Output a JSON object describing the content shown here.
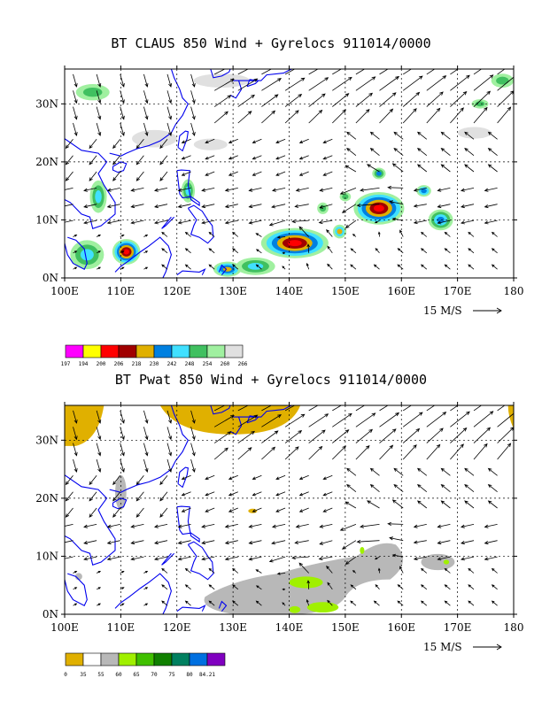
{
  "panels": [
    {
      "title": "BT CLAUS 850 Wind + Gyrelocs 911014/0000",
      "ref_vector_label": "15 M/S"
    },
    {
      "title": "BT Pwat 850 Wind + Gyrelocs 911014/0000",
      "ref_vector_label": "15 M/S"
    }
  ],
  "colors": {
    "coast": "#0000ee",
    "grid": "#000000",
    "panel1_scale": [
      "#ff00ff",
      "#ffff00",
      "#ff0000",
      "#a00000",
      "#e0b000",
      "#0080e0",
      "#40e0ff",
      "#40c060",
      "#a0f0a0",
      "#e0e0e0"
    ],
    "panel2_scale": [
      "#e0b000",
      "#ffffff",
      "#b8b8b8",
      "#a0f000",
      "#40c000",
      "#108000",
      "#008060",
      "#0070e0",
      "#8000c0"
    ]
  },
  "chart_data": [
    {
      "type": "heatmap",
      "title": "BT CLAUS 850 Wind + Gyrelocs 911014/0000",
      "x_ticks": [
        "100E",
        "110E",
        "120E",
        "130E",
        "140E",
        "150E",
        "160E",
        "170E",
        "180"
      ],
      "y_ticks": [
        "0N",
        "10N",
        "20N",
        "30N"
      ],
      "xlim": [
        100,
        180
      ],
      "ylim": [
        0,
        36
      ],
      "grid": true,
      "colorbar_labels": [
        "197",
        "194",
        "200",
        "206",
        "218",
        "230",
        "242",
        "248",
        "254",
        "260",
        "266"
      ],
      "reference_vector": "15 M/S",
      "features": [
        {
          "lon": 141,
          "lat": 6,
          "value": 206
        },
        {
          "lon": 156,
          "lat": 12,
          "value": 206
        },
        {
          "lon": 111,
          "lat": 4.5,
          "value": 206
        },
        {
          "lon": 129,
          "lat": 1.5,
          "value": 218
        },
        {
          "lon": 149,
          "lat": 8,
          "value": 218
        },
        {
          "lon": 167,
          "lat": 10,
          "value": 242
        },
        {
          "lon": 106,
          "lat": 14,
          "value": 248
        },
        {
          "lon": 122,
          "lat": 15,
          "value": 248
        }
      ]
    },
    {
      "type": "heatmap",
      "title": "BT Pwat 850 Wind + Gyrelocs 911014/0000",
      "x_ticks": [
        "100E",
        "110E",
        "120E",
        "130E",
        "140E",
        "150E",
        "160E",
        "170E",
        "180"
      ],
      "y_ticks": [
        "0N",
        "10N",
        "20N",
        "30N"
      ],
      "xlim": [
        100,
        180
      ],
      "ylim": [
        0,
        36
      ],
      "grid": true,
      "colorbar_labels": [
        "0",
        "35",
        "55",
        "60",
        "65",
        "70",
        "75",
        "80",
        "84.21"
      ],
      "reference_vector": "15 M/S",
      "features": [
        {
          "lon": 145,
          "lat": 5,
          "value": 55
        },
        {
          "lon": 143,
          "lat": 6,
          "value": 60
        },
        {
          "lon": 166,
          "lat": 9,
          "value": 55
        },
        {
          "lon": 115,
          "lat": 34,
          "value": 0
        },
        {
          "lon": 130,
          "lat": 34,
          "value": 0
        }
      ]
    }
  ]
}
